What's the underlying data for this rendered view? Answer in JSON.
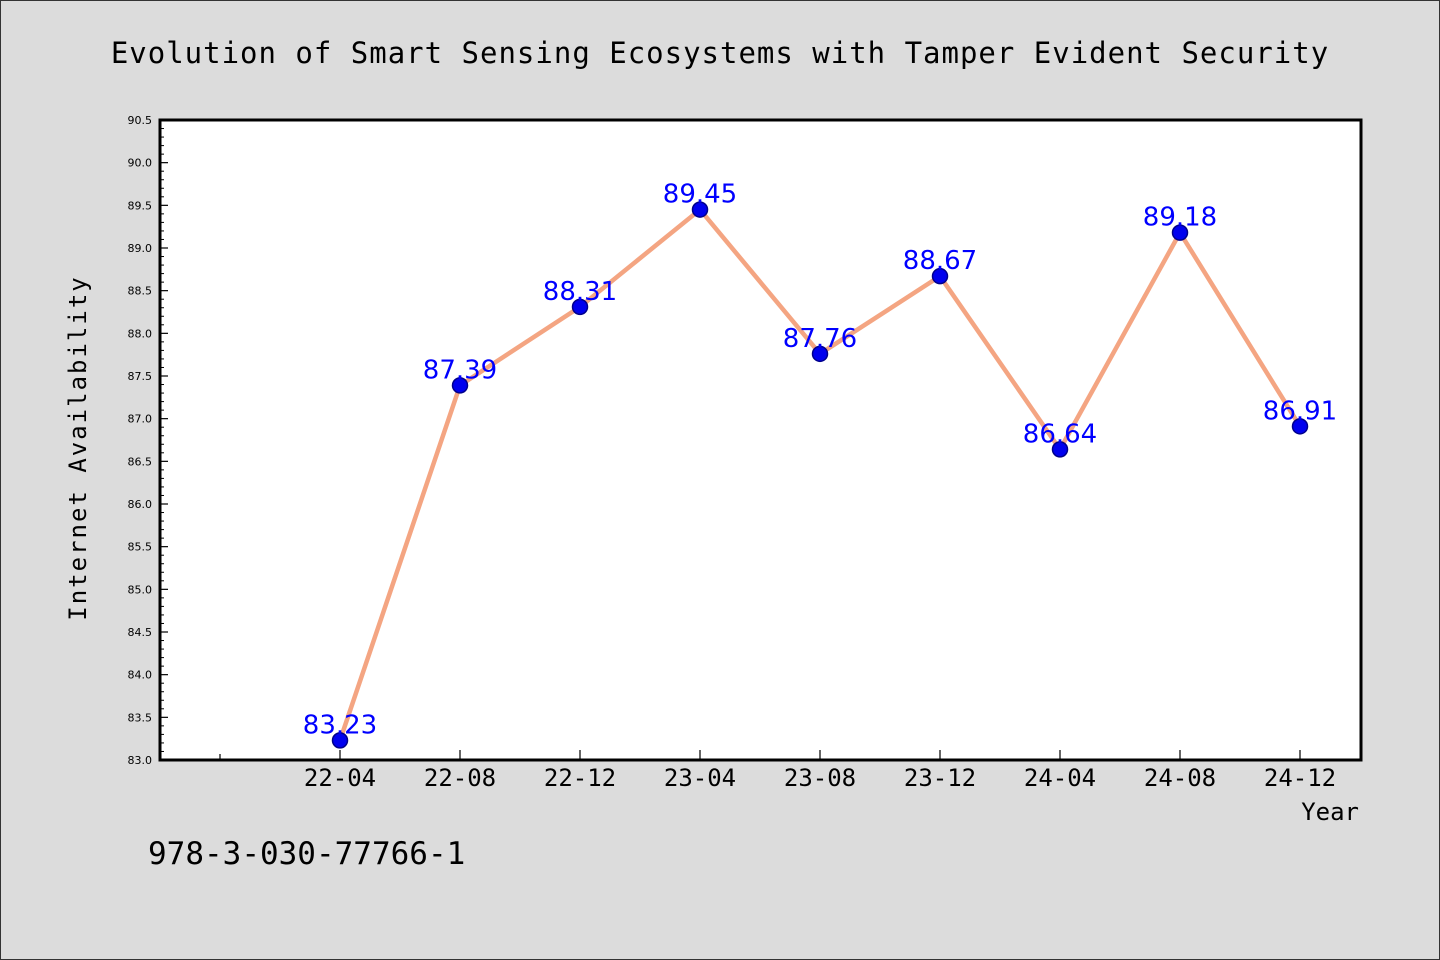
{
  "chart_data": {
    "type": "line",
    "title": "Evolution of Smart Sensing Ecosystems with Tamper Evident Security",
    "xlabel": "Year",
    "ylabel": "Internet Availability",
    "categories": [
      "22-04",
      "22-08",
      "22-12",
      "23-04",
      "23-08",
      "23-12",
      "24-04",
      "24-08",
      "24-12"
    ],
    "values": [
      83.23,
      87.39,
      88.31,
      89.45,
      87.76,
      88.67,
      86.64,
      89.18,
      86.91
    ],
    "data_labels": [
      "83.23",
      "87.39",
      "88.31",
      "89.45",
      "87.76",
      "88.67",
      "86.64",
      "89.18",
      "86.91"
    ],
    "ylim": [
      83.0,
      90.5
    ],
    "yticks": [
      "83.0",
      "83.5",
      "84.0",
      "84.5",
      "85.0",
      "85.5",
      "86.0",
      "86.5",
      "87.0",
      "87.5",
      "88.0",
      "88.5",
      "89.0",
      "89.5",
      "90.0",
      "90.5"
    ],
    "grid": false,
    "legend": "none",
    "colors": {
      "line": "#f4a582",
      "marker_fill": "#0000ee",
      "marker_edge": "#00008b",
      "data_label": "#0000ff",
      "background": "#dcdcdc",
      "plot_background": "#ffffff"
    }
  },
  "footer": {
    "isbn": "978-3-030-77766-1"
  }
}
